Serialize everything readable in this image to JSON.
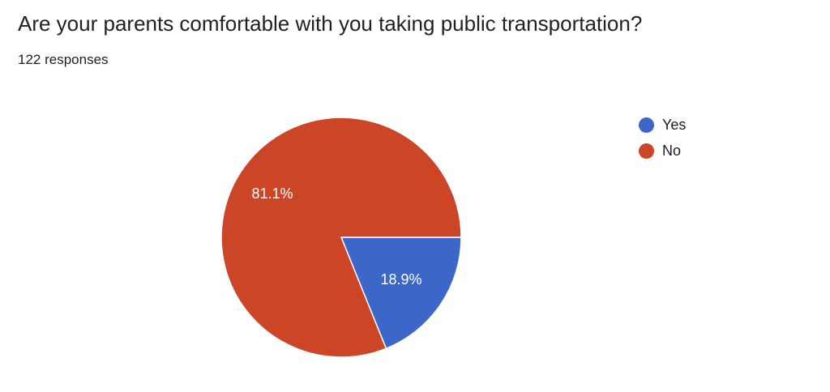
{
  "question": {
    "title": "Are your parents comfortable with you taking public transportation?",
    "responses": "122 responses"
  },
  "chart_data": {
    "type": "pie",
    "title": "Are your parents comfortable with you taking public transportation?",
    "categories": [
      "Yes",
      "No"
    ],
    "values": [
      18.9,
      81.1
    ],
    "labels": [
      "18.9%",
      "81.1%"
    ],
    "colors": [
      "#3c67c8",
      "#cc4527"
    ],
    "slice_border_color": "#ffffff",
    "legend_position": "right"
  }
}
